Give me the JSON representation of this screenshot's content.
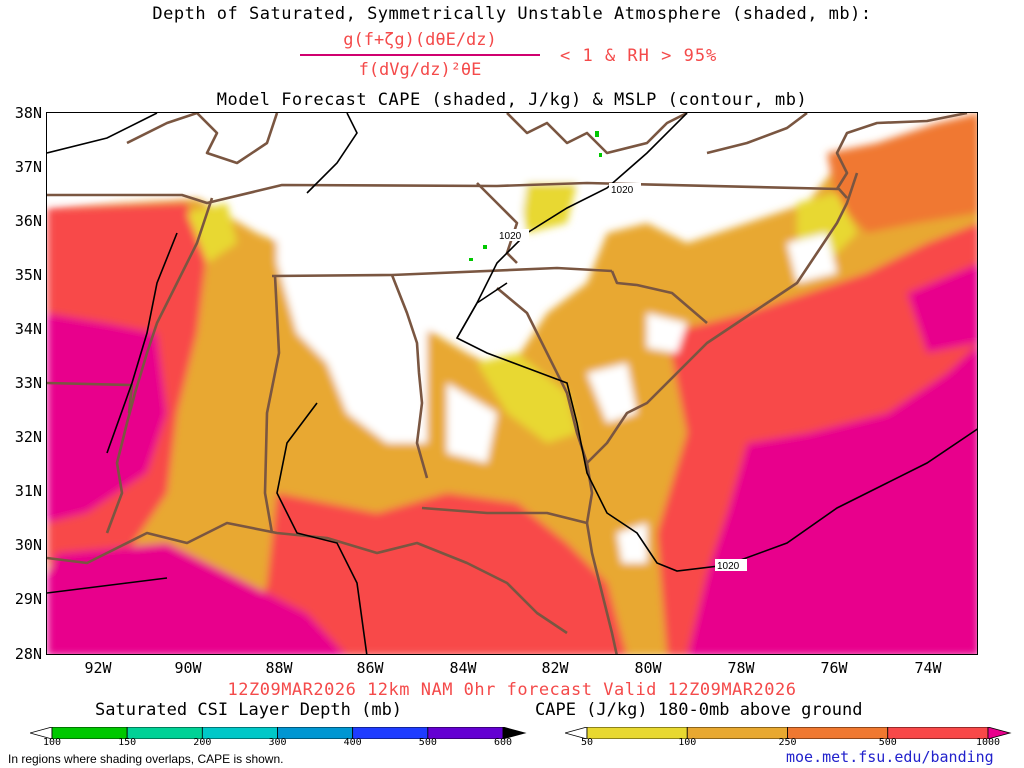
{
  "title": {
    "line1": "Depth of Saturated, Symmetrically Unstable Atmosphere (shaded, mb):",
    "formula_numerator": "g(f+ζg)(dθE/dz)",
    "formula_denominator": "f(dVg/dz)²θE",
    "criteria": "< 1 & RH > 95%",
    "line3": "Model Forecast CAPE (shaded, J/kg) & MSLP (contour, mb)"
  },
  "map": {
    "lat_labels": [
      "38N",
      "37N",
      "36N",
      "35N",
      "34N",
      "33N",
      "32N",
      "31N",
      "30N",
      "29N",
      "28N"
    ],
    "lon_labels": [
      "92W",
      "90W",
      "88W",
      "86W",
      "84W",
      "82W",
      "80W",
      "78W",
      "76W",
      "74W"
    ],
    "isobar_labels": [
      "1020",
      "1020",
      "1020"
    ],
    "colors": {
      "state_borders": "#7a5641",
      "isobars": "#000000"
    }
  },
  "valid_time": "12Z09MAR2026 12km NAM 0hr forecast Valid 12Z09MAR2026",
  "legends": {
    "csi": {
      "title": "Saturated CSI Layer Depth (mb)",
      "ticks": [
        "100",
        "150",
        "200",
        "300",
        "400",
        "500",
        "600"
      ],
      "colors": [
        "#ffffff",
        "#00c800",
        "#00d296",
        "#00c8c8",
        "#0096d2",
        "#1e3cff",
        "#6400d2",
        "#000000"
      ]
    },
    "cape": {
      "title": "CAPE (J/kg) 180-0mb above ground",
      "ticks": [
        "50",
        "100",
        "250",
        "500",
        "1000"
      ],
      "colors": [
        "#ffffff",
        "#e8d830",
        "#e8a830",
        "#f07830",
        "#f84848",
        "#e8008c"
      ]
    }
  },
  "footnote": "In regions where shading overlaps, CAPE is shown.",
  "url": "moe.met.fsu.edu/banding"
}
